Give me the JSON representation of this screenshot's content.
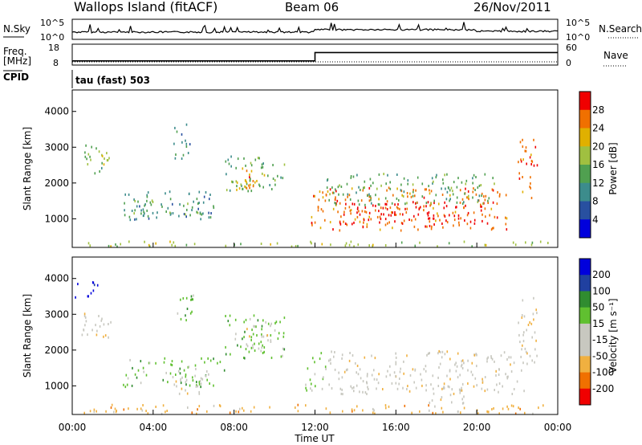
{
  "header": {
    "station": "Wallops Island (fitACF)",
    "beam": "Beam 06",
    "date": "26/Nov/2011"
  },
  "noise_panel": {
    "left_label": "N.Sky",
    "right_label": "N.Search",
    "left_ticks": [
      "10^5",
      "10^0"
    ],
    "right_ticks": [
      "10^5",
      "10^0"
    ]
  },
  "freq_panel": {
    "left_label_1": "Freq.",
    "left_label_2": "[MHz]",
    "right_label": "Nave",
    "left_ticks": [
      "18",
      "8"
    ],
    "right_ticks": [
      "60",
      "0"
    ],
    "cpid_label": "CPID",
    "cpid_text": "tau (fast) 503",
    "freq_step": [
      {
        "t": 0,
        "v": 9.6
      },
      {
        "t": 12,
        "v": 9.6
      },
      {
        "t": 12,
        "v": 14.8
      },
      {
        "t": 24,
        "v": 14.8
      }
    ],
    "nave_level": 4
  },
  "chart_data": [
    {
      "type": "heatmap",
      "name": "power",
      "ylabel": "Slant Range [km]",
      "ylim": [
        200,
        4600
      ],
      "xlim": [
        0,
        24
      ],
      "yticks": [
        "4000",
        "3000",
        "2000",
        "1000"
      ],
      "colorbar_label": "Power [dB]",
      "colorbar_ticks": [
        "28",
        "24",
        "20",
        "16",
        "12",
        "8",
        "4"
      ],
      "colors": [
        "#0000dc",
        "#2850a0",
        "#3c8c8c",
        "#50a050",
        "#a0c040",
        "#e0b000",
        "#f07000",
        "#f00000"
      ],
      "regions": [
        {
          "x": [
            0.5,
            1.5
          ],
          "y": [
            2300,
            3100
          ],
          "level": 3
        },
        {
          "x": [
            0.5,
            2.0
          ],
          "y": [
            2500,
            2900
          ],
          "level": 4
        },
        {
          "x": [
            2.5,
            7.0
          ],
          "y": [
            1000,
            1800
          ],
          "level": 2
        },
        {
          "x": [
            3.0,
            6.5
          ],
          "y": [
            1100,
            1600
          ],
          "level": 3
        },
        {
          "x": [
            5.0,
            5.8
          ],
          "y": [
            2600,
            3700
          ],
          "level": 2
        },
        {
          "x": [
            7.5,
            10.5
          ],
          "y": [
            1800,
            2800
          ],
          "level": 3
        },
        {
          "x": [
            8.0,
            9.5
          ],
          "y": [
            1800,
            2500
          ],
          "level": 5
        },
        {
          "x": [
            8.5,
            9.2
          ],
          "y": [
            1700,
            2200
          ],
          "level": 6
        },
        {
          "x": [
            11.8,
            21.5
          ],
          "y": [
            700,
            1900
          ],
          "level": 6
        },
        {
          "x": [
            13.0,
            20.5
          ],
          "y": [
            800,
            1500
          ],
          "level": 7
        },
        {
          "x": [
            12.5,
            21.0
          ],
          "y": [
            1400,
            2300
          ],
          "level": 3
        },
        {
          "x": [
            22.0,
            22.8
          ],
          "y": [
            1600,
            3400
          ],
          "level": 6
        },
        {
          "x": [
            22.6,
            23.0
          ],
          "y": [
            2400,
            3200
          ],
          "level": 7
        },
        {
          "x": [
            0.3,
            23.5
          ],
          "y": [
            250,
            400
          ],
          "level": 4
        }
      ]
    },
    {
      "type": "heatmap",
      "name": "velocity",
      "ylabel": "Slant Range [km]",
      "ylim": [
        200,
        4600
      ],
      "xlim": [
        0,
        24
      ],
      "yticks": [
        "4000",
        "3000",
        "2000",
        "1000"
      ],
      "colorbar_label": "Velocity [m s⁻¹]",
      "colorbar_ticks": [
        "200",
        "100",
        "50",
        "15",
        "-15",
        "-50",
        "-100",
        "-200"
      ],
      "colors": [
        "#f00000",
        "#f07000",
        "#f0b040",
        "#c8c8c0",
        "#c8c8c0",
        "#60c030",
        "#308c30",
        "#2040a0",
        "#0000dc"
      ],
      "regions": [
        {
          "x": [
            0.1,
            1.3
          ],
          "y": [
            3500,
            4000
          ],
          "level": 8
        },
        {
          "x": [
            0.3,
            2.0
          ],
          "y": [
            2300,
            3100
          ],
          "level": 3
        },
        {
          "x": [
            2.5,
            7.5
          ],
          "y": [
            1000,
            1800
          ],
          "level": 5
        },
        {
          "x": [
            5.0,
            7.0
          ],
          "y": [
            800,
            1400
          ],
          "level": 3
        },
        {
          "x": [
            5.0,
            6.0
          ],
          "y": [
            2800,
            3700
          ],
          "level": 5
        },
        {
          "x": [
            7.5,
            10.5
          ],
          "y": [
            1800,
            3000
          ],
          "level": 5
        },
        {
          "x": [
            8.5,
            10.0
          ],
          "y": [
            2000,
            2800
          ],
          "level": 3
        },
        {
          "x": [
            11.5,
            12.5
          ],
          "y": [
            900,
            2000
          ],
          "level": 5
        },
        {
          "x": [
            12.5,
            22.5
          ],
          "y": [
            800,
            2000
          ],
          "level": 3
        },
        {
          "x": [
            17.5,
            19.5
          ],
          "y": [
            500,
            1000
          ],
          "level": 3
        },
        {
          "x": [
            22.0,
            23.0
          ],
          "y": [
            1500,
            3500
          ],
          "level": 3
        },
        {
          "x": [
            0.3,
            23.5
          ],
          "y": [
            250,
            500
          ],
          "level": 2
        }
      ]
    }
  ],
  "x_axis": {
    "label": "Time UT",
    "ticks": [
      "00:00",
      "04:00",
      "08:00",
      "12:00",
      "16:00",
      "20:00",
      "00:00"
    ]
  }
}
